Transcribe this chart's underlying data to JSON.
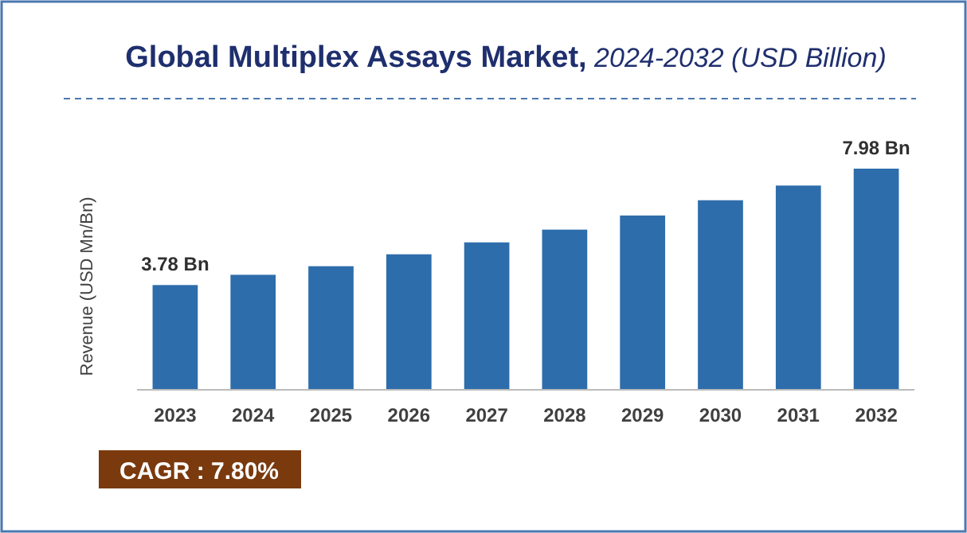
{
  "chart_data": {
    "type": "bar",
    "title": "Global Multiplex Assays Market,",
    "subtitle": "2024-2032 (USD Billion)",
    "ylabel": "Revenue (USD Mn/Bn)",
    "categories": [
      "2023",
      "2024",
      "2025",
      "2026",
      "2027",
      "2028",
      "2029",
      "2030",
      "2031",
      "2032"
    ],
    "values": [
      3.78,
      4.15,
      4.46,
      4.89,
      5.32,
      5.78,
      6.29,
      6.84,
      7.37,
      7.98
    ],
    "value_labels": [
      "3.78 Bn",
      null,
      null,
      null,
      null,
      null,
      null,
      null,
      null,
      "7.98 Bn"
    ],
    "color": "#2e6dab",
    "grid": false,
    "annotations": [
      "CAGR : 7.80%"
    ]
  }
}
